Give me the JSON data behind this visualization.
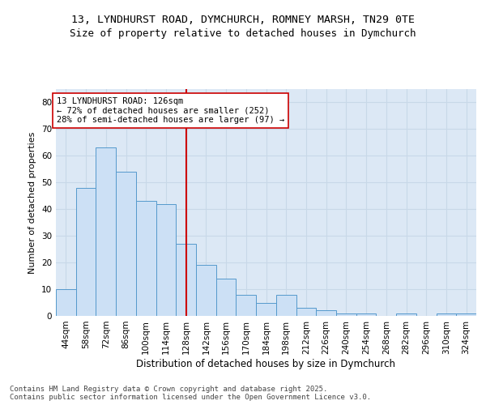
{
  "title": "13, LYNDHURST ROAD, DYMCHURCH, ROMNEY MARSH, TN29 0TE",
  "subtitle": "Size of property relative to detached houses in Dymchurch",
  "xlabel": "Distribution of detached houses by size in Dymchurch",
  "ylabel": "Number of detached properties",
  "categories": [
    "44sqm",
    "58sqm",
    "72sqm",
    "86sqm",
    "100sqm",
    "114sqm",
    "128sqm",
    "142sqm",
    "156sqm",
    "170sqm",
    "184sqm",
    "198sqm",
    "212sqm",
    "226sqm",
    "240sqm",
    "254sqm",
    "268sqm",
    "282sqm",
    "296sqm",
    "310sqm",
    "324sqm"
  ],
  "hist_values": [
    10,
    48,
    63,
    54,
    43,
    42,
    27,
    19,
    14,
    8,
    5,
    8,
    3,
    2,
    1,
    1,
    0,
    1,
    0,
    1,
    1
  ],
  "bar_color": "#cce0f5",
  "bar_edge_color": "#5599cc",
  "vline_x": 128,
  "vline_color": "#cc0000",
  "annotation_text": "13 LYNDHURST ROAD: 126sqm\n← 72% of detached houses are smaller (252)\n28% of semi-detached houses are larger (97) →",
  "annotation_box_color": "#ffffff",
  "annotation_box_edge": "#cc0000",
  "ylim": [
    0,
    85
  ],
  "yticks": [
    0,
    10,
    20,
    30,
    40,
    50,
    60,
    70,
    80
  ],
  "grid_color": "#c8d8e8",
  "bg_color": "#dce8f5",
  "footer": "Contains HM Land Registry data © Crown copyright and database right 2025.\nContains public sector information licensed under the Open Government Licence v3.0.",
  "title_fontsize": 9.5,
  "subtitle_fontsize": 9,
  "xlabel_fontsize": 8.5,
  "ylabel_fontsize": 8,
  "tick_fontsize": 7.5,
  "annotation_fontsize": 7.5,
  "footer_fontsize": 6.5
}
